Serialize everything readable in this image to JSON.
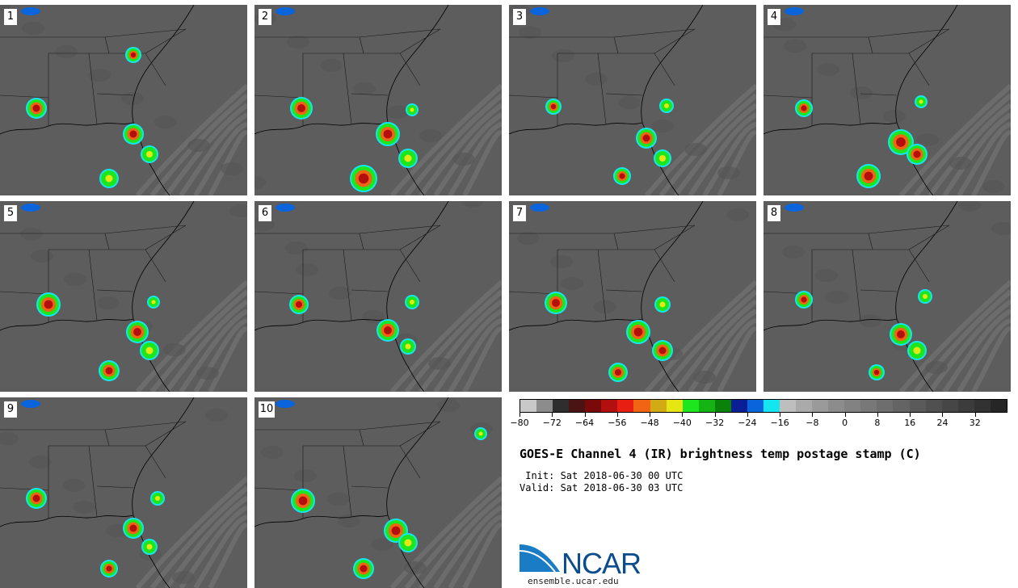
{
  "panels": [
    {
      "label": "1"
    },
    {
      "label": "2"
    },
    {
      "label": "3"
    },
    {
      "label": "4"
    },
    {
      "label": "5"
    },
    {
      "label": "6"
    },
    {
      "label": "7"
    },
    {
      "label": "8"
    },
    {
      "label": "9"
    },
    {
      "label": "10"
    }
  ],
  "colorbar": {
    "colors": [
      "#c8c8c8",
      "#8c8c8c",
      "#2e2e2e",
      "#4a1414",
      "#7a0a0a",
      "#b40f0f",
      "#e81e14",
      "#f06414",
      "#d2aa14",
      "#e6e614",
      "#1ee61e",
      "#14b414",
      "#0a820a",
      "#0a1e96",
      "#0a64dc",
      "#14e6f0",
      "#bebebe",
      "#aaaaaa",
      "#9a9a9a",
      "#8c8c8c",
      "#828282",
      "#787878",
      "#6e6e6e",
      "#646464",
      "#5a5a5a",
      "#505050",
      "#464646",
      "#3c3c3c",
      "#323232",
      "#262626"
    ],
    "tick_labels": [
      "−80",
      "−72",
      "−64",
      "−56",
      "−48",
      "−40",
      "−32",
      "−24",
      "−16",
      "−8",
      "0",
      "8",
      "16",
      "24",
      "32"
    ]
  },
  "title": "GOES-E Channel 4 (IR) brightness temp postage stamp (C)",
  "init_line": " Init: Sat 2018-06-30 00 UTC",
  "valid_line": "Valid: Sat 2018-06-30 03 UTC",
  "logo": {
    "text": "NCAR",
    "url": "ensemble.ucar.edu"
  }
}
